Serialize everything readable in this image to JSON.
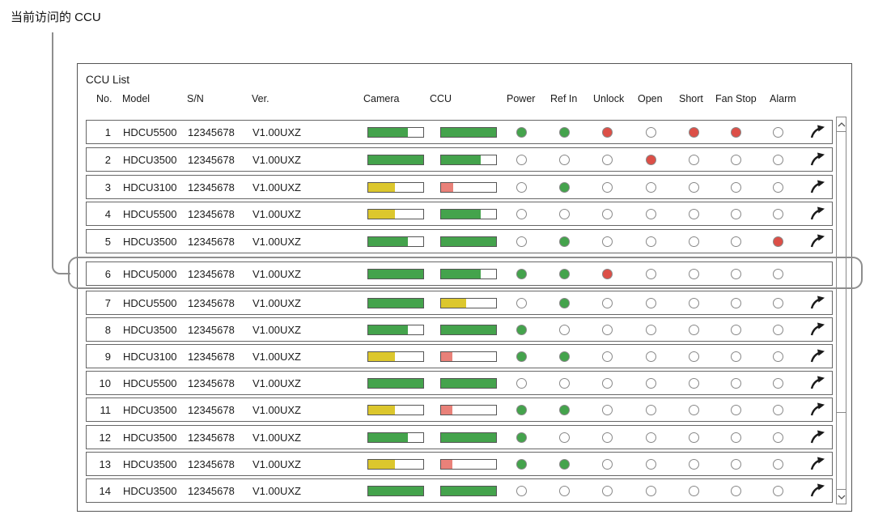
{
  "annotation": {
    "label": "当前访问的 CCU"
  },
  "panel": {
    "title": "CCU List",
    "columns": [
      "No.",
      "Model",
      "S/N",
      "Ver.",
      "Camera",
      "CCU",
      "Power",
      "Ref In",
      "Unlock",
      "Open",
      "Short",
      "Fan Stop",
      "Alarm"
    ],
    "rows": [
      {
        "no": "1",
        "model": "HDCU5500",
        "sn": "12345678",
        "ver": "V1.00UXZ",
        "camera": {
          "pct": 72,
          "color": "green"
        },
        "ccu": {
          "pct": 100,
          "color": "green"
        },
        "leds": [
          "green",
          "green",
          "red",
          "off",
          "red",
          "red",
          "off"
        ],
        "arrow": true,
        "current": false
      },
      {
        "no": "2",
        "model": "HDCU3500",
        "sn": "12345678",
        "ver": "V1.00UXZ",
        "camera": {
          "pct": 100,
          "color": "green"
        },
        "ccu": {
          "pct": 72,
          "color": "green"
        },
        "leds": [
          "off",
          "off",
          "off",
          "red",
          "off",
          "off",
          "off"
        ],
        "arrow": true,
        "current": false
      },
      {
        "no": "3",
        "model": "HDCU3100",
        "sn": "12345678",
        "ver": "V1.00UXZ",
        "camera": {
          "pct": 48,
          "color": "yellow"
        },
        "ccu": {
          "pct": 22,
          "color": "red"
        },
        "leds": [
          "off",
          "green",
          "off",
          "off",
          "off",
          "off",
          "off"
        ],
        "arrow": true,
        "current": false
      },
      {
        "no": "4",
        "model": "HDCU5500",
        "sn": "12345678",
        "ver": "V1.00UXZ",
        "camera": {
          "pct": 48,
          "color": "yellow"
        },
        "ccu": {
          "pct": 72,
          "color": "green"
        },
        "leds": [
          "off",
          "off",
          "off",
          "off",
          "off",
          "off",
          "off"
        ],
        "arrow": true,
        "current": false
      },
      {
        "no": "5",
        "model": "HDCU3500",
        "sn": "12345678",
        "ver": "V1.00UXZ",
        "camera": {
          "pct": 72,
          "color": "green"
        },
        "ccu": {
          "pct": 100,
          "color": "green"
        },
        "leds": [
          "off",
          "green",
          "off",
          "off",
          "off",
          "off",
          "red"
        ],
        "arrow": true,
        "current": false
      },
      {
        "no": "6",
        "model": "HDCU5000",
        "sn": "12345678",
        "ver": "V1.00UXZ",
        "camera": {
          "pct": 100,
          "color": "green"
        },
        "ccu": {
          "pct": 72,
          "color": "green"
        },
        "leds": [
          "green",
          "green",
          "red",
          "off",
          "off",
          "off",
          "off"
        ],
        "arrow": false,
        "current": true
      },
      {
        "no": "7",
        "model": "HDCU5500",
        "sn": "12345678",
        "ver": "V1.00UXZ",
        "camera": {
          "pct": 100,
          "color": "green"
        },
        "ccu": {
          "pct": 45,
          "color": "yellow"
        },
        "leds": [
          "off",
          "green",
          "off",
          "off",
          "off",
          "off",
          "off"
        ],
        "arrow": true,
        "current": false
      },
      {
        "no": "8",
        "model": "HDCU3500",
        "sn": "12345678",
        "ver": "V1.00UXZ",
        "camera": {
          "pct": 72,
          "color": "green"
        },
        "ccu": {
          "pct": 100,
          "color": "green"
        },
        "leds": [
          "green",
          "off",
          "off",
          "off",
          "off",
          "off",
          "off"
        ],
        "arrow": true,
        "current": false
      },
      {
        "no": "9",
        "model": "HDCU3100",
        "sn": "12345678",
        "ver": "V1.00UXZ",
        "camera": {
          "pct": 48,
          "color": "yellow"
        },
        "ccu": {
          "pct": 20,
          "color": "red"
        },
        "leds": [
          "green",
          "green",
          "off",
          "off",
          "off",
          "off",
          "off"
        ],
        "arrow": true,
        "current": false
      },
      {
        "no": "10",
        "model": "HDCU5500",
        "sn": "12345678",
        "ver": "V1.00UXZ",
        "camera": {
          "pct": 100,
          "color": "green"
        },
        "ccu": {
          "pct": 100,
          "color": "green"
        },
        "leds": [
          "off",
          "off",
          "off",
          "off",
          "off",
          "off",
          "off"
        ],
        "arrow": true,
        "current": false
      },
      {
        "no": "11",
        "model": "HDCU3500",
        "sn": "12345678",
        "ver": "V1.00UXZ",
        "camera": {
          "pct": 48,
          "color": "yellow"
        },
        "ccu": {
          "pct": 20,
          "color": "red"
        },
        "leds": [
          "green",
          "green",
          "off",
          "off",
          "off",
          "off",
          "off"
        ],
        "arrow": true,
        "current": false
      },
      {
        "no": "12",
        "model": "HDCU3500",
        "sn": "12345678",
        "ver": "V1.00UXZ",
        "camera": {
          "pct": 72,
          "color": "green"
        },
        "ccu": {
          "pct": 100,
          "color": "green"
        },
        "leds": [
          "green",
          "off",
          "off",
          "off",
          "off",
          "off",
          "off"
        ],
        "arrow": true,
        "current": false
      },
      {
        "no": "13",
        "model": "HDCU3500",
        "sn": "12345678",
        "ver": "V1.00UXZ",
        "camera": {
          "pct": 48,
          "color": "yellow"
        },
        "ccu": {
          "pct": 20,
          "color": "red"
        },
        "leds": [
          "green",
          "green",
          "off",
          "off",
          "off",
          "off",
          "off"
        ],
        "arrow": true,
        "current": false
      },
      {
        "no": "14",
        "model": "HDCU3500",
        "sn": "12345678",
        "ver": "V1.00UXZ",
        "camera": {
          "pct": 100,
          "color": "green"
        },
        "ccu": {
          "pct": 100,
          "color": "green"
        },
        "leds": [
          "off",
          "off",
          "off",
          "off",
          "off",
          "off",
          "off"
        ],
        "arrow": true,
        "current": false
      }
    ]
  },
  "icons": {
    "jump": "jump-arrow-icon",
    "scroll_up": "scroll-up-icon",
    "scroll_down": "scroll-down-icon"
  },
  "colors": {
    "green": "#44a34c",
    "yellow": "#dcc72d",
    "red_bar": "#e98179",
    "red_led": "#dc4f47",
    "led_off": "#ffffff",
    "highlight_ring": "#8e8e8e"
  }
}
